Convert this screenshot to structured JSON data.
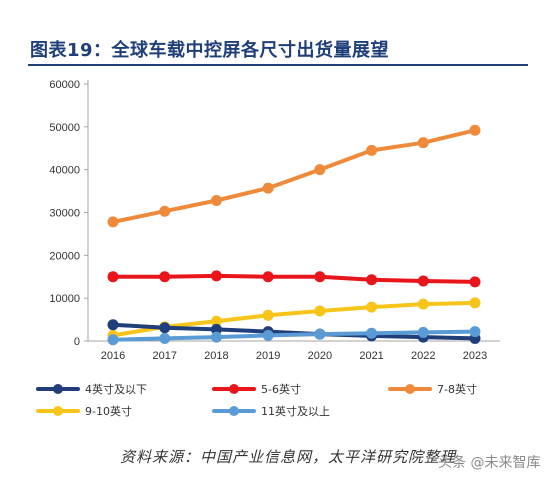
{
  "title": "图表19：全球车载中控屏各尺寸出货量展望",
  "source": "资料来源：中国产业信息网，太平洋研究院整理",
  "watermark": "头条 @未来智库",
  "chart_data": {
    "type": "line",
    "x": [
      "2016",
      "2017",
      "2018",
      "2019",
      "2020",
      "2021",
      "2022",
      "2023"
    ],
    "ylim": [
      0,
      60000
    ],
    "yticks": [
      0,
      10000,
      20000,
      30000,
      40000,
      50000,
      60000
    ],
    "grid": false,
    "legend_position": "bottom",
    "series": [
      {
        "name": "4英寸及以下",
        "color": "#1f3e7a",
        "values": [
          3800,
          3100,
          2700,
          2200,
          1600,
          1200,
          900,
          600
        ]
      },
      {
        "name": "5-6英寸",
        "color": "#e8161b",
        "values": [
          15000,
          15000,
          15200,
          15000,
          15000,
          14300,
          14000,
          13800
        ]
      },
      {
        "name": "7-8英寸",
        "color": "#ef8a3a",
        "values": [
          27800,
          30300,
          32800,
          35700,
          40000,
          44500,
          46300,
          49200
        ]
      },
      {
        "name": "9-10英寸",
        "color": "#f7c51a",
        "values": [
          1300,
          3300,
          4600,
          6000,
          7000,
          7900,
          8600,
          8900
        ]
      },
      {
        "name": "11英寸及以上",
        "color": "#5b9bd5",
        "values": [
          300,
          600,
          900,
          1300,
          1600,
          1800,
          2000,
          2200
        ]
      }
    ]
  }
}
